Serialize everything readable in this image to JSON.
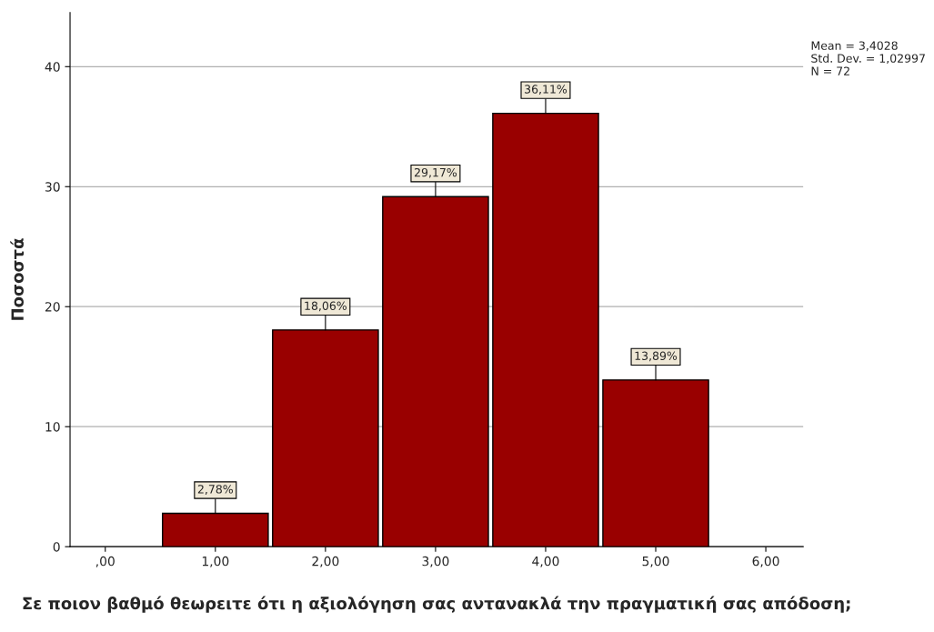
{
  "chart_data": {
    "type": "histogram",
    "xlabel": "Σε ποιον βαθμό θεωρειτε ότι η αξιολόγηση σας αντανακλά την πραγματική σας απόδοση;",
    "ylabel": "Ποσοστά",
    "bins": [
      0.5,
      1.5,
      2.5,
      3.5,
      4.5,
      5.5
    ],
    "values": [
      2.78,
      18.06,
      29.17,
      36.11,
      13.89
    ],
    "value_labels": [
      "2,78%",
      "18,06%",
      "29,17%",
      "36,11%",
      "13,89%"
    ],
    "color": "#990000",
    "xlim": [
      -0.32,
      6.34
    ],
    "xticks": [
      {
        "value": 0,
        "label": ",00"
      },
      {
        "value": 1,
        "label": "1,00"
      },
      {
        "value": 2,
        "label": "2,00"
      },
      {
        "value": 3,
        "label": "3,00"
      },
      {
        "value": 4,
        "label": "4,00"
      },
      {
        "value": 5,
        "label": "5,00"
      },
      {
        "value": 6,
        "label": "6,00"
      }
    ],
    "ylim": [
      0,
      44.5
    ],
    "yticks": [
      0,
      10,
      20,
      30,
      40
    ],
    "grid": "y",
    "annotations": [
      "Mean = 3,4028\nStd. Dev. = 1,02997\nN = 72"
    ]
  }
}
